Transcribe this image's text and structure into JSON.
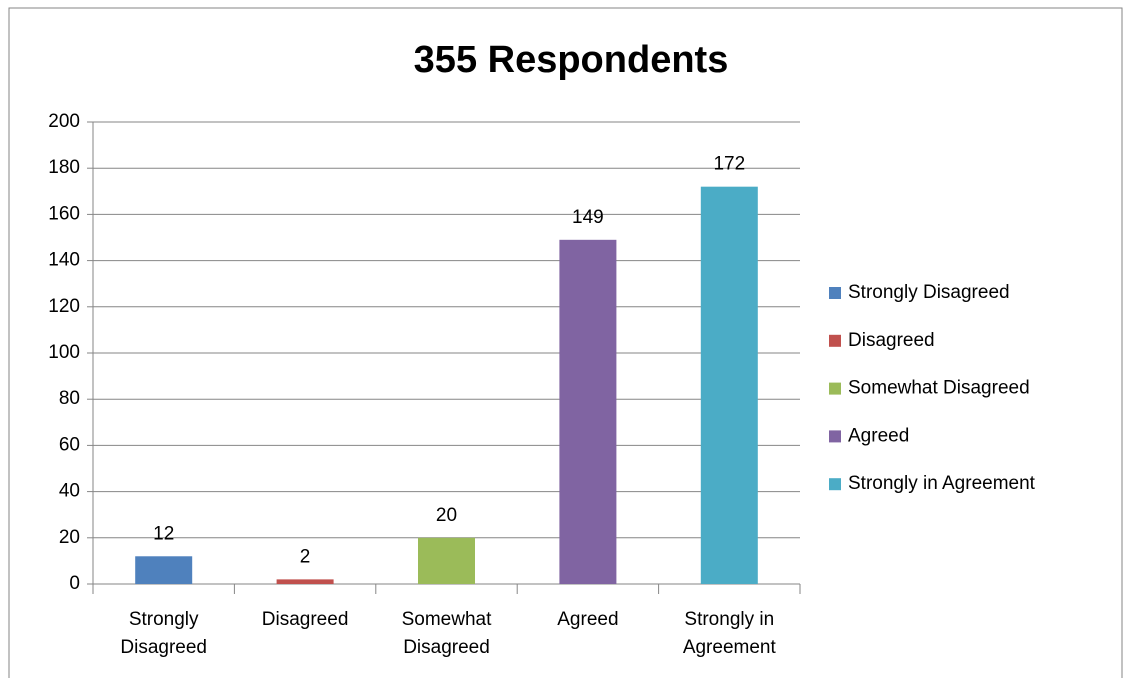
{
  "chart_data": {
    "type": "bar",
    "title": "355 Respondents",
    "categories": [
      "Strongly Disagreed",
      "Disagreed",
      "Somewhat Disagreed",
      "Agreed",
      "Strongly in Agreement"
    ],
    "values": [
      12,
      2,
      20,
      149,
      172
    ],
    "colors": [
      "#4f81bd",
      "#c0504d",
      "#9bbb59",
      "#8064a2",
      "#4bacc6"
    ],
    "ylim": [
      0,
      200
    ],
    "yticks": [
      0,
      20,
      40,
      60,
      80,
      100,
      120,
      140,
      160,
      180,
      200
    ],
    "grid": true,
    "legend": "right"
  }
}
